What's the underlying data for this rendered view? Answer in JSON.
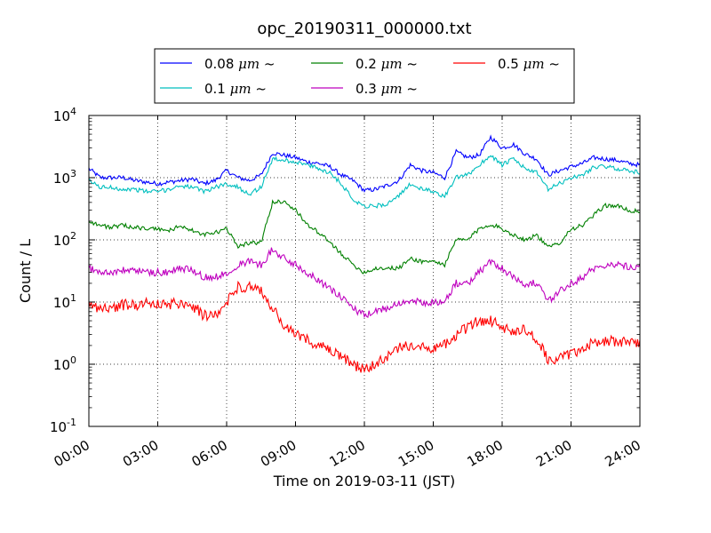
{
  "chart_data": {
    "type": "line",
    "title": "opc_20190311_000000.txt",
    "xlabel": "Time on 2019-03-11 (JST)",
    "ylabel": "Count / L",
    "yscale": "log",
    "xlim": [
      "00:00",
      "24:00"
    ],
    "ylim": [
      0.1,
      10000
    ],
    "grid": true,
    "legend_position": "top-outside",
    "x_ticks": [
      "00:00",
      "03:00",
      "06:00",
      "09:00",
      "12:00",
      "15:00",
      "18:00",
      "21:00",
      "24:00"
    ],
    "y_ticks": [
      {
        "base": "10",
        "exp": "-1",
        "value": 0.1
      },
      {
        "base": "10",
        "exp": "0",
        "value": 1
      },
      {
        "base": "10",
        "exp": "1",
        "value": 10
      },
      {
        "base": "10",
        "exp": "2",
        "value": 100
      },
      {
        "base": "10",
        "exp": "3",
        "value": 1000
      },
      {
        "base": "10",
        "exp": "4",
        "value": 10000
      }
    ],
    "x_hours": [
      0,
      0.5,
      1,
      1.5,
      2,
      2.5,
      3,
      3.5,
      4,
      4.5,
      5,
      5.5,
      6,
      6.5,
      7,
      7.5,
      8,
      8.5,
      9,
      9.5,
      10,
      10.5,
      11,
      11.5,
      12,
      12.5,
      13,
      13.5,
      14,
      14.5,
      15,
      15.5,
      16,
      16.5,
      17,
      17.5,
      18,
      18.5,
      19,
      19.5,
      20,
      20.5,
      21,
      21.5,
      22,
      22.5,
      23,
      23.5,
      24
    ],
    "series": [
      {
        "name": "0.08 μm ~",
        "label_main": "0.08 ",
        "label_unit": "μm",
        "label_tilde": "  ~",
        "color": "#0000ff",
        "values": [
          1400,
          1000,
          1000,
          1000,
          900,
          850,
          800,
          850,
          900,
          950,
          800,
          900,
          1300,
          1000,
          900,
          1100,
          2500,
          2300,
          2100,
          1800,
          1700,
          1500,
          1100,
          900,
          620,
          650,
          750,
          900,
          1600,
          1300,
          1200,
          1000,
          2600,
          2100,
          2300,
          4500,
          3000,
          3400,
          2400,
          2000,
          1100,
          1300,
          1500,
          1700,
          2100,
          2000,
          1900,
          1700,
          1600
        ]
      },
      {
        "name": "0.1 μm ~",
        "label_main": "0.1 ",
        "label_unit": "μm",
        "label_tilde": "  ~",
        "color": "#00bfbf",
        "values": [
          900,
          700,
          700,
          650,
          650,
          600,
          600,
          650,
          750,
          700,
          600,
          700,
          800,
          700,
          550,
          700,
          2000,
          1900,
          1800,
          1600,
          1400,
          1200,
          800,
          450,
          350,
          350,
          380,
          500,
          800,
          650,
          600,
          500,
          1000,
          1100,
          1600,
          2300,
          1600,
          2000,
          1400,
          1200,
          650,
          800,
          1000,
          1100,
          1500,
          1500,
          1400,
          1300,
          1200
        ]
      },
      {
        "name": "0.2 μm ~",
        "label_main": "0.2 ",
        "label_unit": "μm",
        "label_tilde": "  ~",
        "color": "#008000",
        "values": [
          200,
          170,
          160,
          170,
          160,
          150,
          150,
          140,
          170,
          140,
          120,
          130,
          150,
          80,
          90,
          90,
          400,
          420,
          300,
          180,
          130,
          90,
          60,
          40,
          30,
          35,
          35,
          35,
          50,
          45,
          45,
          40,
          100,
          100,
          150,
          180,
          150,
          120,
          100,
          120,
          75,
          90,
          150,
          170,
          250,
          360,
          350,
          300,
          280
        ]
      },
      {
        "name": "0.3 μm ~",
        "label_main": "0.3 ",
        "label_unit": "μm",
        "label_tilde": "  ~",
        "color": "#bf00bf",
        "values": [
          35,
          30,
          30,
          32,
          33,
          30,
          30,
          30,
          35,
          33,
          25,
          25,
          30,
          40,
          45,
          40,
          70,
          50,
          40,
          30,
          23,
          16,
          12,
          8,
          6,
          7,
          8,
          10,
          10,
          10,
          10,
          10,
          20,
          20,
          30,
          45,
          35,
          25,
          20,
          20,
          10,
          15,
          20,
          25,
          35,
          40,
          40,
          38,
          37
        ]
      },
      {
        "name": "0.5 μm ~",
        "label_main": "0.5 ",
        "label_unit": "μm",
        "label_tilde": "  ~",
        "color": "#ff0000",
        "values": [
          9,
          8,
          8,
          9,
          9,
          10,
          9,
          9,
          10,
          9,
          6,
          6,
          10,
          18,
          17,
          15,
          8,
          4,
          3,
          2.5,
          2,
          1.6,
          1.3,
          1,
          0.8,
          1.0,
          1.3,
          1.8,
          2,
          2.1,
          1.8,
          2,
          3,
          4,
          5,
          5,
          4,
          3.5,
          3.5,
          2.5,
          1.2,
          1.2,
          1.5,
          1.8,
          2.2,
          2.3,
          2.4,
          2.2,
          2.3
        ]
      }
    ]
  }
}
